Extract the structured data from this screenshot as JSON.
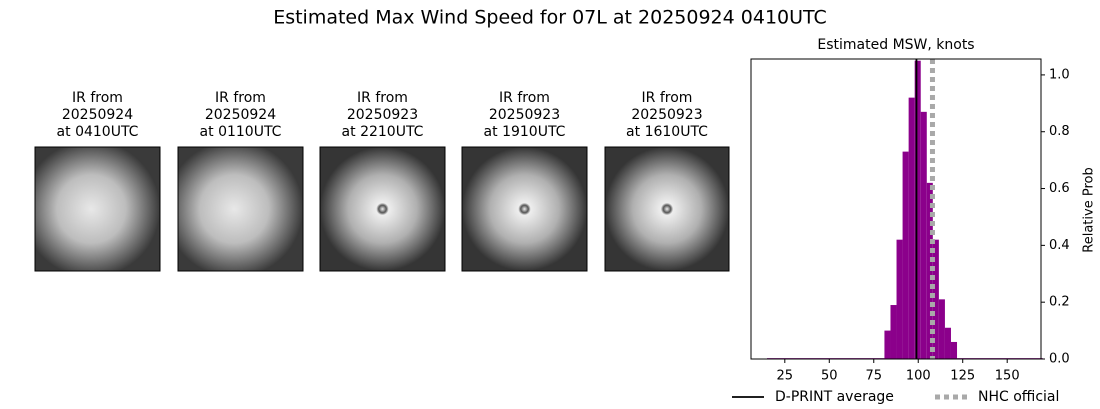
{
  "title": "Estimated Max Wind Speed for 07L at 20250924 0410UTC",
  "panels": [
    {
      "lines": [
        "IR from",
        "20250924",
        "at 0410UTC"
      ]
    },
    {
      "lines": [
        "IR from",
        "20250924",
        "at 0110UTC"
      ]
    },
    {
      "lines": [
        "IR from",
        "20250923",
        "at 2210UTC"
      ]
    },
    {
      "lines": [
        "IR from",
        "20250923",
        "at 1910UTC"
      ]
    },
    {
      "lines": [
        "IR from",
        "20250923",
        "at 1610UTC"
      ]
    }
  ],
  "chart_data": {
    "type": "histogram",
    "title": "Estimated MSW, knots",
    "y_label": "Relative Prob",
    "color": "#8b008b",
    "bins": [
      15,
      81,
      84.4,
      87.8,
      91.2,
      94.6,
      98.0,
      101.4,
      104.8,
      108.2,
      111.6,
      115.0,
      118.4,
      121.8,
      170
    ],
    "counts": [
      0.003,
      0.1,
      0.19,
      0.42,
      0.73,
      0.92,
      1.05,
      0.87,
      0.62,
      0.42,
      0.21,
      0.11,
      0.06,
      0.003
    ],
    "xlim": [
      6,
      169
    ],
    "ylim": [
      0,
      1.056
    ],
    "xticks": [
      25,
      50,
      75,
      100,
      125,
      150
    ],
    "yticks": [
      {
        "value": 0,
        "label": "0.0"
      },
      0.2,
      0.4,
      0.6,
      0.8,
      {
        "value": 1,
        "label": "1.0"
      }
    ],
    "reference_lines": [
      {
        "name": "D-PRINT average",
        "value": 99,
        "color": "#000000",
        "style": "solid"
      },
      {
        "name": "NHC official",
        "value": 108,
        "color": "#a9a9a9",
        "style": "dotted"
      }
    ]
  }
}
